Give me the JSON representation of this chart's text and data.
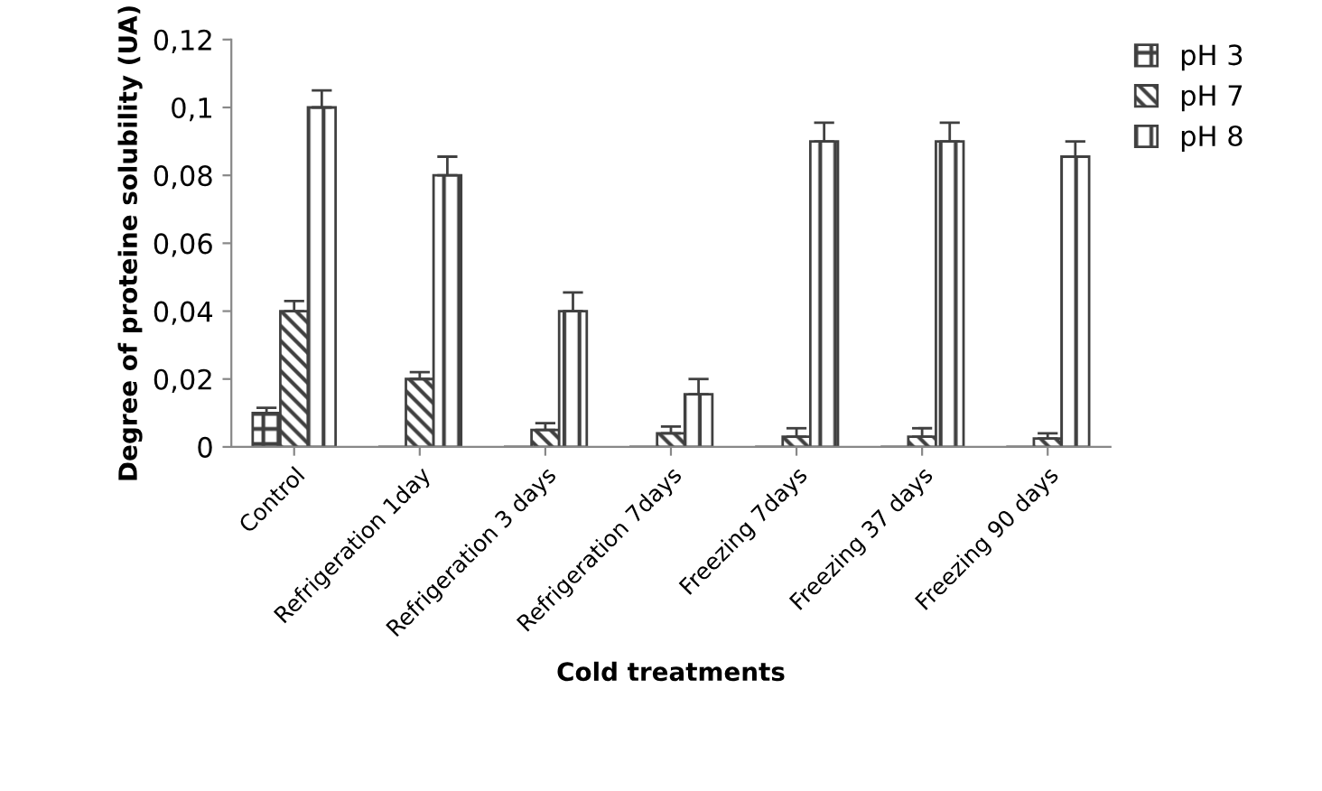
{
  "chart_data": {
    "type": "bar",
    "xlabel": "Cold treatments",
    "ylabel": "Degree of proteine solubility (UA)",
    "categories": [
      "Control",
      "Refrigeration 1day",
      "Refrigeration 3 days",
      "Refrigeration 7days",
      "Freezing 7days",
      "Freezing 37 days",
      "Freezing 90 days"
    ],
    "series": [
      {
        "name": "pH 3",
        "color": "#404040",
        "values": [
          0.01,
          0,
          0,
          0,
          0,
          0,
          0
        ],
        "errors": [
          [
            0.01,
            0.0115
          ],
          null,
          null,
          null,
          null,
          null,
          null
        ]
      },
      {
        "name": "pH 7",
        "color": "#404040",
        "values": [
          0.04,
          0.02,
          0.005,
          0.004,
          0.003,
          0.003,
          0.0025
        ],
        "errors": [
          [
            0.04,
            0.043
          ],
          [
            0.02,
            0.022
          ],
          [
            0.005,
            0.007
          ],
          [
            0.004,
            0.006
          ],
          [
            0.003,
            0.0055
          ],
          [
            0.003,
            0.0055
          ],
          [
            0.0025,
            0.004
          ]
        ]
      },
      {
        "name": "pH 8",
        "color": "#404040",
        "values": [
          0.1,
          0.08,
          0.04,
          0.0155,
          0.09,
          0.09,
          0.0855
        ],
        "errors": [
          [
            0.1,
            0.105
          ],
          [
            0.08,
            0.0855
          ],
          [
            0.04,
            0.0455
          ],
          [
            0.0155,
            0.02
          ],
          [
            0.09,
            0.0955
          ],
          [
            0.09,
            0.0955
          ],
          [
            0.0855,
            0.09
          ]
        ]
      }
    ],
    "ylim": [
      0,
      0.12
    ],
    "yticks": [
      {
        "value": 0,
        "label": "0"
      },
      {
        "value": 0.02,
        "label": "0,02"
      },
      {
        "value": 0.04,
        "label": "0,04"
      },
      {
        "value": 0.06,
        "label": "0,06"
      },
      {
        "value": 0.08,
        "label": "0,08"
      },
      {
        "value": 0.1,
        "label": "0,1"
      },
      {
        "value": 0.12,
        "label": "0,12"
      }
    ],
    "grid": false,
    "legend": "top right"
  }
}
